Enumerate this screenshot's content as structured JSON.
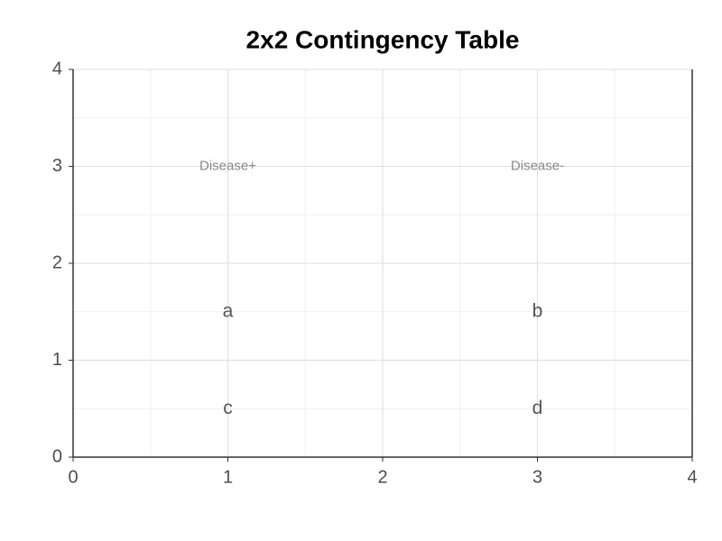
{
  "chart_data": {
    "type": "text",
    "title": "2x2 Contingency Table",
    "xlim": [
      0,
      4
    ],
    "ylim": [
      0,
      4
    ],
    "xticks": [
      0,
      1,
      2,
      3,
      4
    ],
    "yticks": [
      0,
      1,
      2,
      3,
      4
    ],
    "grid": true,
    "minor_grid": true,
    "headers": [
      {
        "text": "Disease+",
        "x": 1,
        "y": 3
      },
      {
        "text": "Disease-",
        "x": 3,
        "y": 3
      }
    ],
    "cells": [
      {
        "text": "a",
        "x": 1,
        "y": 1.5
      },
      {
        "text": "b",
        "x": 3,
        "y": 1.5
      },
      {
        "text": "c",
        "x": 1,
        "y": 0.5
      },
      {
        "text": "d",
        "x": 3,
        "y": 0.5
      }
    ]
  }
}
